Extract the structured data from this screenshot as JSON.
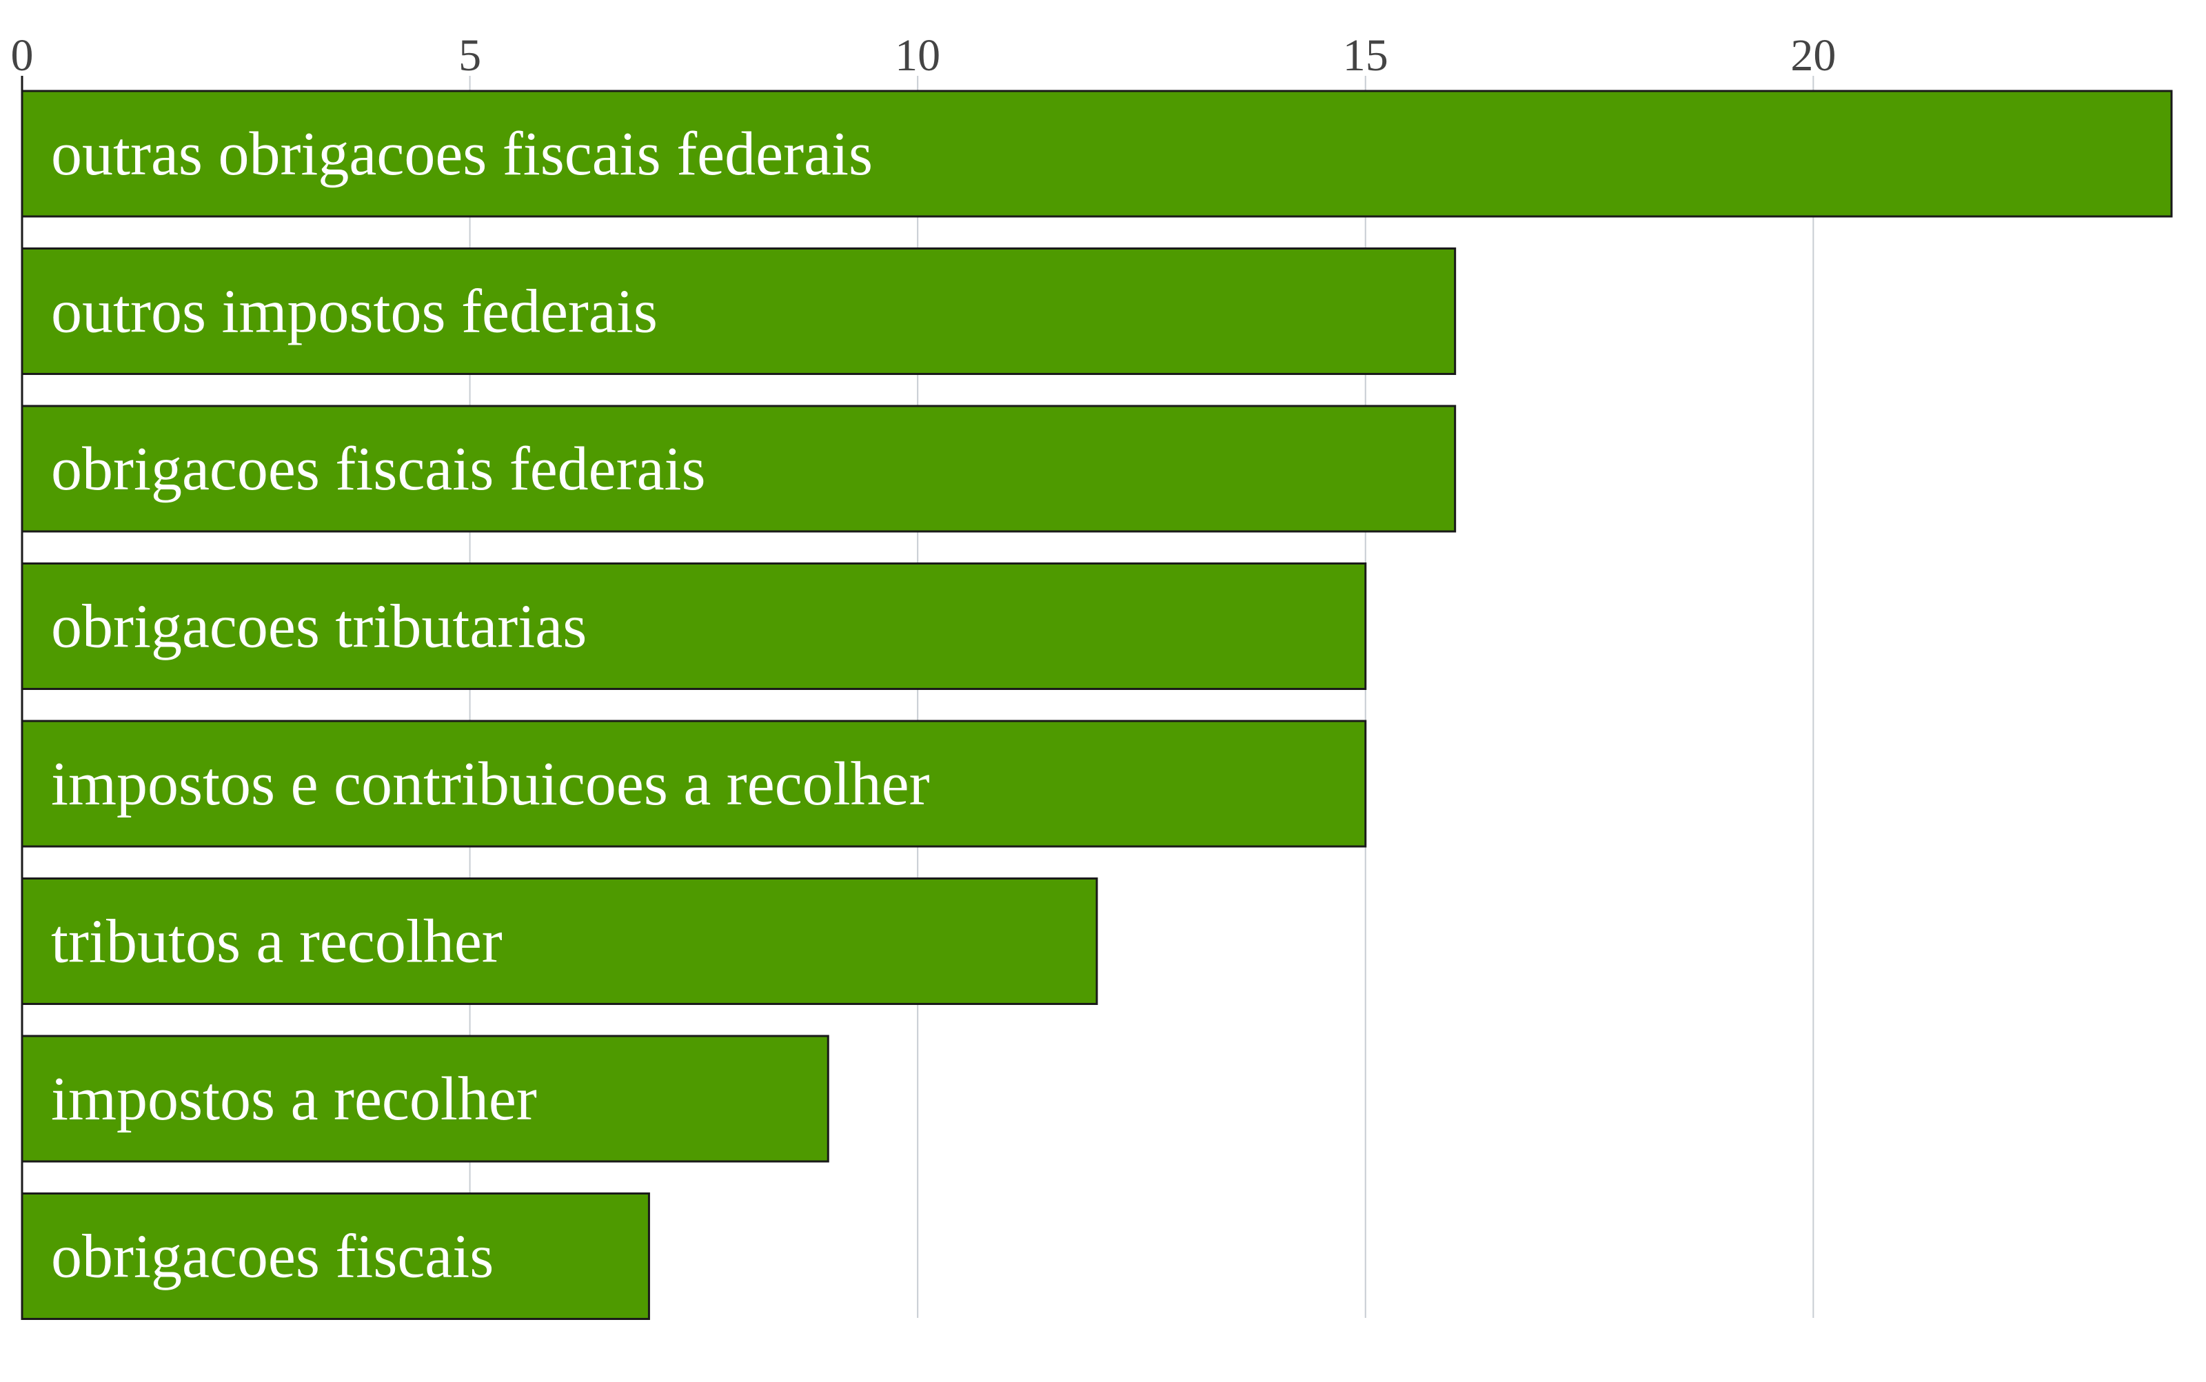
{
  "chart_data": {
    "type": "bar",
    "orientation": "horizontal",
    "categories": [
      "outras obrigacoes fiscais federais",
      "outros impostos federais",
      "obrigacoes fiscais federais",
      "obrigacoes tributarias",
      "impostos e contribuicoes a recolher",
      "tributos a recolher",
      "impostos a recolher",
      "obrigacoes fiscais"
    ],
    "values": [
      24,
      16,
      16,
      15,
      15,
      12,
      9,
      7
    ],
    "xlim": [
      0,
      24
    ],
    "x_ticks": [
      0,
      5,
      10,
      15,
      20
    ],
    "x_tick_labels": [
      "0",
      "5",
      "10",
      "15",
      "20"
    ],
    "x_axis_position": "top",
    "grid": true,
    "title": "",
    "xlabel": "",
    "ylabel": "",
    "colors": {
      "bar_fill": "#4e9a00",
      "bar_stroke": "#1a1a1a",
      "label_inside": "#ffffff",
      "label_outside": "#4e9a00",
      "grid": "#c8cdd3",
      "axis": "#1a1a1a"
    }
  }
}
